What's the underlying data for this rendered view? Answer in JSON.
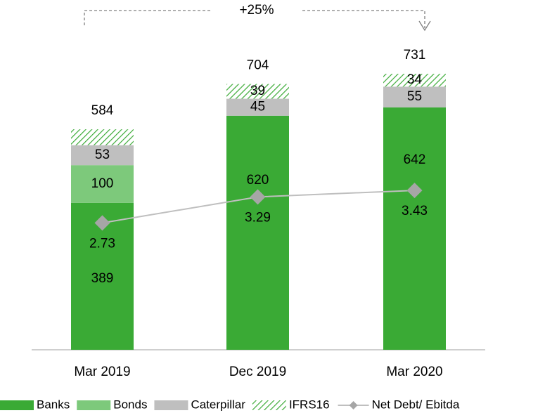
{
  "chart_data": {
    "type": "bar",
    "stacked": true,
    "annotation": "+25%",
    "categories": [
      "Mar 2019",
      "Dec 2019",
      "Mar 2020"
    ],
    "series": [
      {
        "name": "Banks",
        "color": "#3aaa35",
        "values": [
          389,
          620,
          642
        ]
      },
      {
        "name": "Bonds",
        "color": "#7dc97b",
        "values": [
          100,
          null,
          null
        ]
      },
      {
        "name": "Caterpillar",
        "color": "#bfbfbf",
        "values": [
          53,
          45,
          55
        ]
      },
      {
        "name": "IFRS16",
        "color": "#3aaa35",
        "hatch": true,
        "values": [
          42,
          39,
          34
        ],
        "value_labels": [
          null,
          "39",
          "34"
        ]
      },
      {
        "name": "Net Debt/ Ebitda",
        "type": "line",
        "axis": "y2",
        "color": "#bfbfbf",
        "marker_color": "#a6a6a6",
        "values": [
          2.73,
          3.29,
          3.43
        ]
      }
    ],
    "totals": [
      584,
      704,
      731
    ],
    "ylim": [
      0,
      800
    ],
    "y2lim": [
      0,
      6.5
    ]
  }
}
